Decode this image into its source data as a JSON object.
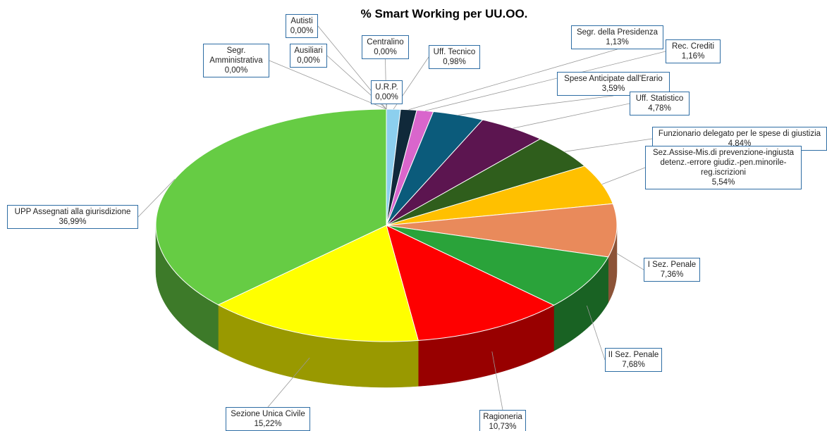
{
  "chart_data": {
    "type": "pie3d",
    "title": "% Smart Working  per UU.OO.",
    "categories": [
      "Uff. Tecnico",
      "Segr. della Presidenza",
      "Rec. Crediti",
      "Spese Anticipate dall'Erario",
      "Uff. Statistico",
      "Funzionario delegato per le spese di giustizia",
      "Sez.Assise-Mis.di prevenzione-ingiusta detenz.-errore giudiz.-pen.minorile-reg.iscrizioni",
      "I Sez. Penale",
      "II Sez. Penale",
      "Ragioneria",
      "Sezione Unica Civile",
      "UPP Assegnati alla giurisdizione",
      "Segr. Amministrativa",
      "Ausiliari",
      "Autisti",
      "U.R.P.",
      "Centralino"
    ],
    "values": [
      0.98,
      1.13,
      1.16,
      3.59,
      4.78,
      4.84,
      5.54,
      7.36,
      7.68,
      10.73,
      15.22,
      36.99,
      0,
      0,
      0,
      0,
      0
    ],
    "value_labels": [
      "0,98%",
      "1,13%",
      "1,16%",
      "3,59%",
      "4,78%",
      "4,84%",
      "5,54%",
      "7,36%",
      "7,68%",
      "10,73%",
      "15,22%",
      "36,99%",
      "0,00%",
      "0,00%",
      "0,00%",
      "0,00%",
      "0,00%"
    ],
    "colors": [
      "#8ccfee",
      "#10293a",
      "#d966cc",
      "#0b5b7b",
      "#5c1550",
      "#2f5e1c",
      "#ffc000",
      "#e98a5b",
      "#2aa33a",
      "#fe0000",
      "#ffff00",
      "#66cc44",
      "#999999",
      "#999999",
      "#999999",
      "#999999",
      "#999999"
    ]
  }
}
